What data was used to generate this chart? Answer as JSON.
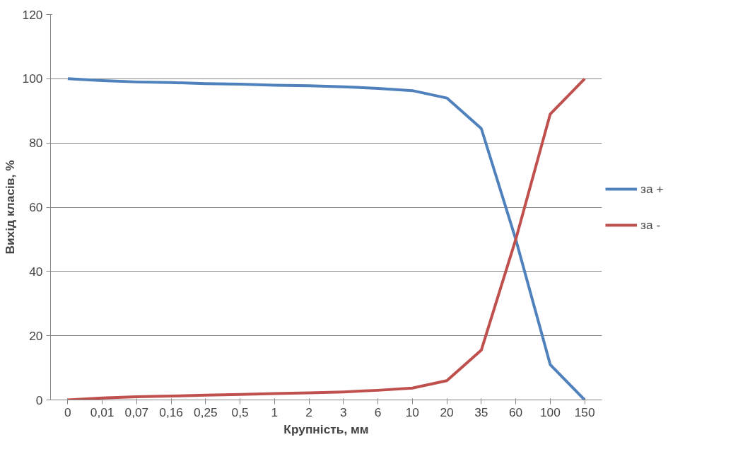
{
  "chart_data": {
    "type": "line",
    "xlabel": "Крупність, мм",
    "ylabel": "Вихід класів, %",
    "categories": [
      "0",
      "0,01",
      "0,07",
      "0,16",
      "0,25",
      "0,5",
      "1",
      "2",
      "3",
      "6",
      "10",
      "20",
      "35",
      "60",
      "100",
      "150"
    ],
    "series": [
      {
        "name": "за +",
        "color": "#4f81bd",
        "values": [
          100,
          99.4,
          99,
          98.8,
          98.5,
          98.3,
          98,
          97.8,
          97.5,
          97,
          96.3,
          94,
          84.5,
          50,
          11,
          0
        ]
      },
      {
        "name": "за -",
        "color": "#c0504d",
        "values": [
          0,
          0.6,
          1,
          1.2,
          1.5,
          1.7,
          2,
          2.2,
          2.5,
          3,
          3.7,
          6,
          15.5,
          50,
          89,
          100
        ]
      }
    ],
    "ylim": [
      0,
      120
    ],
    "yticks": [
      0,
      20,
      40,
      60,
      80,
      100,
      120
    ],
    "grid": "y",
    "legend": "right",
    "marker": "none",
    "line_style": "solid"
  }
}
